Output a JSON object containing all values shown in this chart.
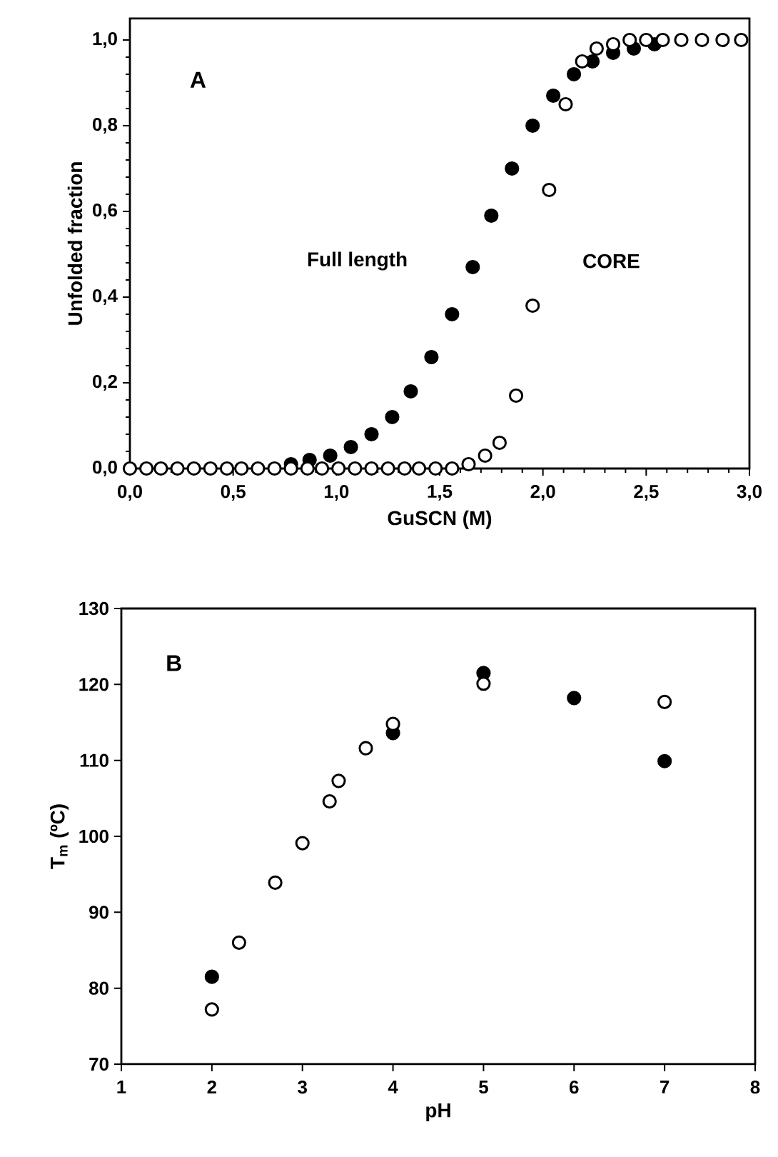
{
  "chart_data": [
    {
      "type": "scatter",
      "xlabel": "GuSCN (M)",
      "ylabel": "Unfolded fraction",
      "annotations": [
        "A"
      ],
      "xlim": [
        0,
        3
      ],
      "ylim": [
        0,
        1.05
      ],
      "xticks": [
        {
          "value": 0,
          "label": "0,0"
        },
        {
          "value": 0.5,
          "label": "0,5"
        },
        {
          "value": 1,
          "label": "1,0"
        },
        {
          "value": 1.5,
          "label": "1,5"
        },
        {
          "value": 2,
          "label": "2,0"
        },
        {
          "value": 2.5,
          "label": "2,5"
        },
        {
          "value": 3,
          "label": "3,0"
        }
      ],
      "yticks": [
        {
          "value": 0,
          "label": "0,0"
        },
        {
          "value": 0.2,
          "label": "0,2"
        },
        {
          "value": 0.4,
          "label": "0,4"
        },
        {
          "value": 0.6,
          "label": "0,6"
        },
        {
          "value": 0.8,
          "label": "0,8"
        },
        {
          "value": 1,
          "label": "1,0"
        }
      ],
      "marker": "circle",
      "series": [
        {
          "name": "Full length",
          "color": "#000000",
          "x": [
            0.78,
            0.87,
            0.97,
            1.07,
            1.17,
            1.27,
            1.36,
            1.46,
            1.56,
            1.66,
            1.75,
            1.85,
            1.95,
            2.05,
            2.15,
            2.24,
            2.34,
            2.44,
            2.54
          ],
          "values": [
            0.01,
            0.02,
            0.03,
            0.05,
            0.08,
            0.12,
            0.18,
            0.26,
            0.36,
            0.47,
            0.59,
            0.7,
            0.8,
            0.87,
            0.92,
            0.95,
            0.97,
            0.98,
            0.99
          ]
        },
        {
          "name": "CORE",
          "color": "#ffffff",
          "x": [
            0,
            0.08,
            0.15,
            0.23,
            0.31,
            0.39,
            0.47,
            0.54,
            0.62,
            0.7,
            0.78,
            0.86,
            0.93,
            1.01,
            1.09,
            1.17,
            1.25,
            1.33,
            1.4,
            1.48,
            1.56,
            1.64,
            1.72,
            1.79,
            1.87,
            1.95,
            2.03,
            2.11,
            2.19,
            2.26,
            2.34,
            2.42,
            2.5,
            2.58,
            2.67,
            2.77,
            2.87,
            2.96
          ],
          "values": [
            0,
            0,
            0,
            0,
            0,
            0,
            0,
            0,
            0,
            0,
            0,
            0,
            0,
            0,
            0,
            0,
            0,
            0,
            0,
            0,
            0,
            0.01,
            0.03,
            0.06,
            0.17,
            0.38,
            0.65,
            0.85,
            0.95,
            0.98,
            0.99,
            1,
            1,
            1,
            1,
            1,
            1,
            1
          ]
        }
      ]
    },
    {
      "type": "scatter",
      "xlabel": "pH",
      "ylabel": "T$_{m}$ (ºC)",
      "annotations": [
        "B"
      ],
      "xlim": [
        1,
        8
      ],
      "ylim": [
        70,
        130
      ],
      "xticks": [
        1,
        2,
        3,
        4,
        5,
        6,
        7,
        8
      ],
      "yticks": [
        70,
        80,
        90,
        100,
        110,
        120,
        130
      ],
      "marker": "circle",
      "series": [
        {
          "color": "#000000",
          "x": [
            2,
            4,
            5,
            6,
            7
          ],
          "values": [
            81.5,
            113.6,
            121.5,
            118.2,
            109.9
          ]
        },
        {
          "color": "#ffffff",
          "x": [
            2,
            2.3,
            2.7,
            3,
            3.3,
            3.4,
            3.7,
            4,
            5,
            7
          ],
          "values": [
            77.2,
            86.0,
            93.9,
            99.1,
            104.6,
            107.3,
            111.6,
            114.8,
            120.1,
            117.7
          ]
        }
      ]
    }
  ]
}
